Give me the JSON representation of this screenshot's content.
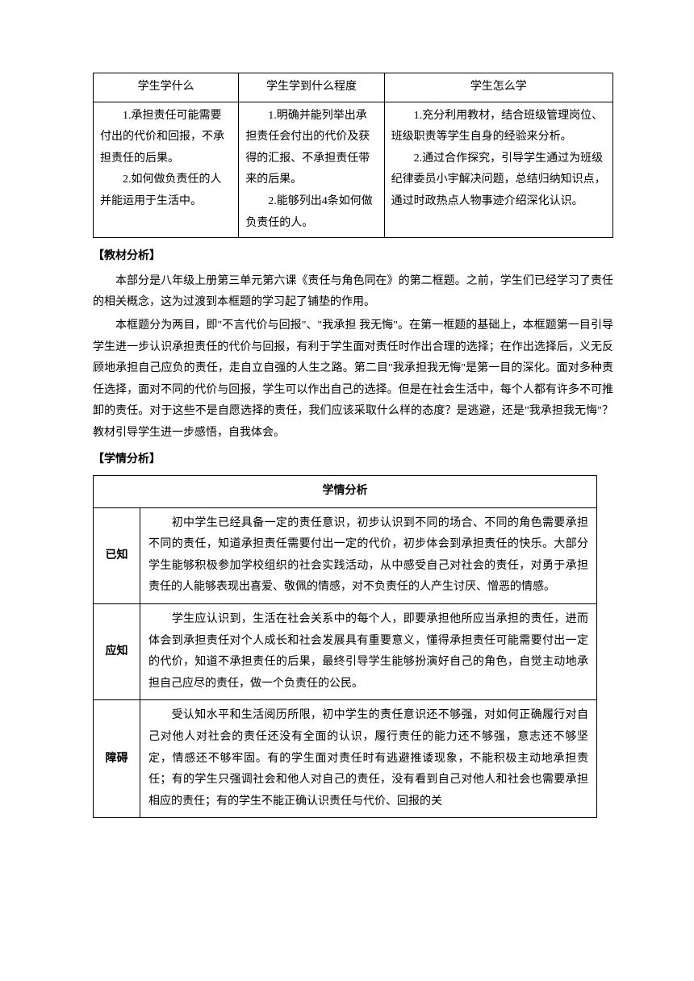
{
  "table1": {
    "headers": [
      "学生学什么",
      "学生学到什么程度",
      "学生怎么学"
    ],
    "row": {
      "col1": "　　1.承担责任可能需要付出的代价和回报，不承担责任的后果。\n　　2.如何做负责任的人并能运用于生活中。",
      "col2": "　　1.明确并能列举出承担责任会付出的代价及获得的汇报、不承担责任带来的后果。\n　　2.能够列出4条如何做负责任的人。",
      "col3": "　　1.充分利用教材，结合班级管理岗位、班级职责等学生自身的经验来分析。\n　　2.通过合作探究，引导学生通过为班级纪律委员小宇解决问题，总结归纳知识点，通过时政热点人物事迹介绍深化认识。"
    }
  },
  "section1": {
    "title": "【教材分析】",
    "para1": "本部分是八年级上册第三单元第六课《责任与角色同在》的第二框题。之前，学生们已经学习了责任的相关概念，这为过渡到本框题的学习起了铺垫的作用。",
    "para2": "本框题分为两目，即\"不言代价与回报\"、\"我承担 我无悔\"。在第一框题的基础上，本框题第一目引导学生进一步认识承担责任的代价与回报，有利于学生面对责任时作出合理的选择；在作出选择后，义无反顾地承担自己应负的责任，走自立自强的人生之路。第二目\"我承担我无悔\"是第一目的深化。面对多种责任选择，面对不同的代价与回报，学生可以作出自己的选择。但是在社会生活中，每个人都有许多不可推卸的责任。对于这些不是自愿选择的责任，我们应该采取什么样的态度？是逃避，还是\"我承担我无悔\"？教材引导学生进一步感悟，自我体会。"
  },
  "section2": {
    "title": "【学情分析】",
    "tableTitle": "学情分析",
    "rows": [
      {
        "label": "已知",
        "content": "　　初中学生已经具备一定的责任意识，初步认识到不同的场合、不同的角色需要承担不同的责任，知道承担责任需要付出一定的代价，初步体会到承担责任的快乐。大部分学生能够积极参加学校组织的社会实践活动，从中感受自己对社会的责任，对勇于承担责任的人能够表现出喜爱、敬佩的情感，对不负责任的人产生讨厌、憎恶的情感。"
      },
      {
        "label": "应知",
        "content": "　　学生应认识到，生活在社会关系中的每个人，即要承担他所应当承担的责任，进而体会到承担责任对个人成长和社会发展具有重要意义，懂得承担责任可能需要付出一定的代价，知道不承担责任的后果，最终引导学生能够扮演好自己的角色，自觉主动地承担自己应尽的责任，做一个负责任的公民。"
      },
      {
        "label": "障碍",
        "content": "　　受认知水平和生活阅历所限，初中学生的责任意识还不够强，对如何正确履行对自己对他人对社会的责任还没有全面的认识，履行责任的能力还不够强，意志还不够坚定，情感还不够牢固。有的学生面对责任时有逃避推诿现象，不能积极主动地承担责任；有的学生只强调社会和他人对自己的责任，没有看到自己对他人和社会也需要承担相应的责任；有的学生不能正确认识责任与代价、回报的关"
      }
    ]
  }
}
